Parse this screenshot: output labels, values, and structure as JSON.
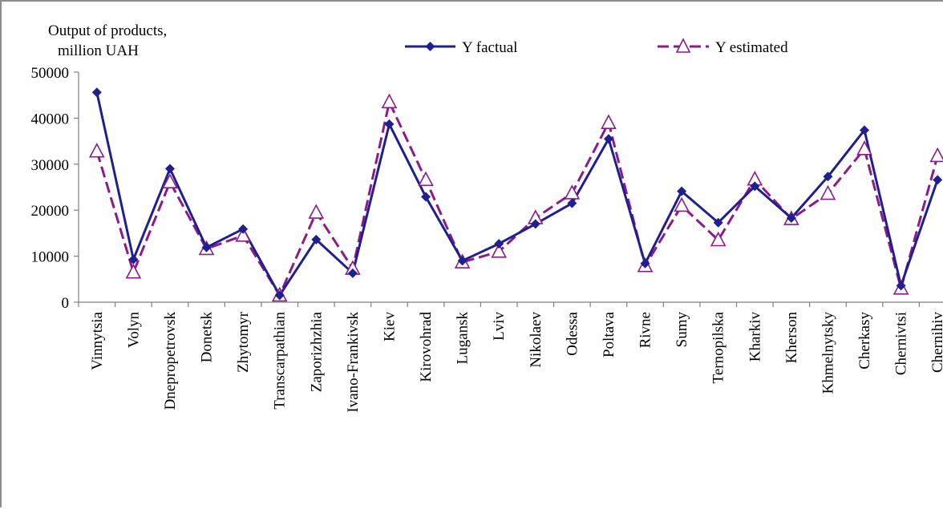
{
  "chart_data": {
    "type": "line",
    "title": "",
    "ylabel": "Output of products, million UAH",
    "ylabel_lines": [
      "Output of products,",
      "million  UAH"
    ],
    "xlabel": "",
    "ylim": [
      0,
      50000
    ],
    "yticks": [
      0,
      10000,
      20000,
      30000,
      40000,
      50000
    ],
    "grid": false,
    "legend_position": "top",
    "categories": [
      "Vinnytsia",
      "Volyn",
      "Dnepropetrovsk",
      "Donetsk",
      "Zhytomyr",
      "Transcarpathian",
      "Zaporizhzhia",
      "Ivano-Frankivsk",
      "Kiev",
      "Kirovohrad",
      "Lugansk",
      "Lviv",
      "Nikolaev",
      "Odessa",
      "Poltava",
      "Rivne",
      "Sumy",
      "Ternopilska",
      "Kharkiv",
      "Kherson",
      "Khmelnytsky",
      "Cherkasy",
      "Chernivtsi",
      "Chernihiv"
    ],
    "series": [
      {
        "name": "Y factual",
        "color": "#1f1f8f",
        "marker": "diamond",
        "dash": "solid",
        "values": [
          45600,
          9300,
          29000,
          11900,
          15900,
          1500,
          13600,
          6300,
          38700,
          22900,
          9000,
          12700,
          17000,
          21500,
          35500,
          8400,
          24100,
          17300,
          25200,
          18300,
          27300,
          37400,
          3600,
          26600
        ]
      },
      {
        "name": "Y estimated",
        "color": "#8b1a8b",
        "marker": "open-triangle",
        "dash": "dashed",
        "values": [
          32800,
          6500,
          26100,
          11600,
          14500,
          1500,
          19500,
          7300,
          43500,
          26600,
          8700,
          11000,
          18300,
          23700,
          39000,
          7900,
          21000,
          13500,
          26700,
          18100,
          23600,
          33300,
          3000,
          31800
        ]
      }
    ]
  }
}
